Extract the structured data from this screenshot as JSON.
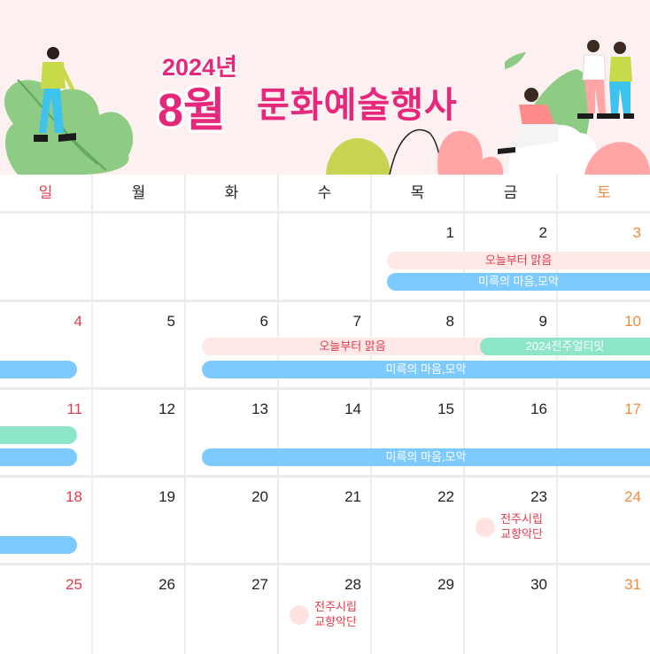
{
  "header": {
    "year": "2024년",
    "month": "8월",
    "title": "문화예술행사"
  },
  "weekdays": [
    "일",
    "월",
    "화",
    "수",
    "목",
    "금",
    "토"
  ],
  "colors": {
    "accent": "#e6287c",
    "sunday": "#e23b4b",
    "saturday": "#f08a3c",
    "bar_pink": "#ffe8e8",
    "bar_blue": "#7ccaff",
    "bar_mint": "#8ee6c9"
  },
  "weeks": [
    [
      "",
      "",
      "",
      "",
      "1",
      "2",
      "3"
    ],
    [
      "4",
      "5",
      "6",
      "7",
      "8",
      "9",
      "10"
    ],
    [
      "11",
      "12",
      "13",
      "14",
      "15",
      "16",
      "17"
    ],
    [
      "18",
      "19",
      "20",
      "21",
      "22",
      "23",
      "24"
    ],
    [
      "25",
      "26",
      "27",
      "28",
      "29",
      "30",
      "31"
    ]
  ],
  "events": {
    "oneul": "오늘부터 맑음",
    "mireuk": "미륵의 마음,모악",
    "jeonju_ultimate": "2024전주얼티밋",
    "orchestra_23_line1": "전주시립",
    "orchestra_23_line2": "교향악단",
    "orchestra_28_line1": "전주시립",
    "orchestra_28_line2": "교향악단"
  },
  "icons": [
    "person-icon",
    "leaf-icon",
    "bush-icon"
  ]
}
